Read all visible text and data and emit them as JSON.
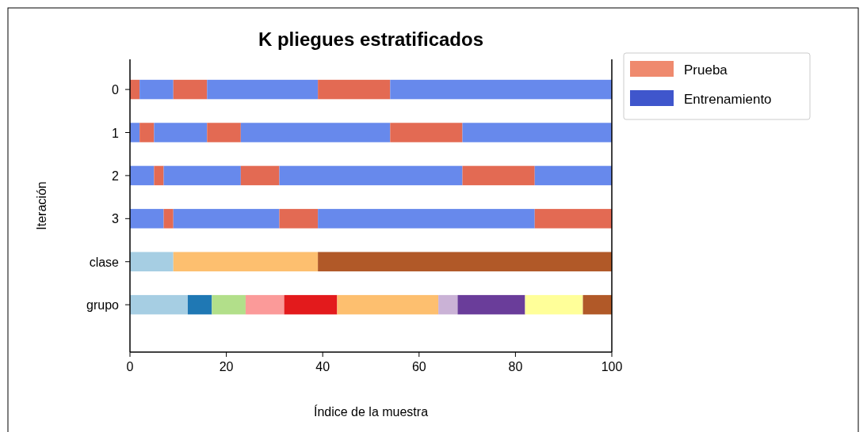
{
  "chart_data": {
    "type": "bar",
    "orientation": "horizontal",
    "stacked": true,
    "title": "K pliegues estratificados",
    "xlabel": "Índice de la muestra",
    "ylabel": "Iteración",
    "categories": [
      "0",
      "1",
      "2",
      "3",
      "clase",
      "grupo"
    ],
    "xlim": [
      0,
      100
    ],
    "xticks": [
      0,
      20,
      40,
      60,
      80,
      100
    ],
    "legend": "top right",
    "grid": false,
    "series": [
      {
        "name": "Prueba",
        "color": "#ef8a6e",
        "values": [
          null,
          null,
          null,
          null,
          null,
          null
        ]
      },
      {
        "name": "Entrenamiento",
        "color": "#3f56cc",
        "values": [
          null,
          null,
          null,
          null,
          null,
          null
        ]
      },
      {
        "values": [
          2,
          2,
          5,
          7,
          9,
          12
        ],
        "colors": [
          "#e36a53",
          "#6789ec",
          "#6789ec",
          "#6789ec",
          "#a6cee3",
          "#a6cee3"
        ]
      },
      {
        "values": [
          7,
          3,
          2,
          2,
          30,
          5
        ],
        "colors": [
          "#6789ec",
          "#e36a53",
          "#e36a53",
          "#e36a53",
          "#fdbf6f",
          "#1f78b4"
        ]
      },
      {
        "values": [
          7,
          11,
          16,
          22,
          61,
          7
        ],
        "colors": [
          "#e36a53",
          "#6789ec",
          "#6789ec",
          "#6789ec",
          "#b15928",
          "#b2df8a"
        ]
      },
      {
        "values": [
          23,
          7,
          8,
          8,
          null,
          8
        ],
        "colors": [
          "#6789ec",
          "#e36a53",
          "#e36a53",
          "#e36a53",
          null,
          "#fb9a99"
        ]
      },
      {
        "values": [
          15,
          31,
          38,
          45,
          null,
          11
        ],
        "colors": [
          "#e36a53",
          "#6789ec",
          "#6789ec",
          "#6789ec",
          null,
          "#e31a1c"
        ]
      },
      {
        "values": [
          46,
          15,
          15,
          16,
          null,
          21
        ],
        "colors": [
          "#6789ec",
          "#e36a53",
          "#e36a53",
          "#e36a53",
          null,
          "#fdbf6f"
        ]
      },
      {
        "values": [
          null,
          31,
          16,
          null,
          null,
          4
        ],
        "colors": [
          null,
          "#6789ec",
          "#6789ec",
          null,
          null,
          "#cab2d6"
        ]
      },
      {
        "values": [
          null,
          null,
          null,
          null,
          null,
          14
        ],
        "colors": [
          null,
          null,
          null,
          null,
          null,
          "#6a3d9a"
        ]
      },
      {
        "values": [
          null,
          null,
          null,
          null,
          null,
          12
        ],
        "colors": [
          null,
          null,
          null,
          null,
          null,
          "#ffff99"
        ]
      },
      {
        "values": [
          null,
          null,
          null,
          null,
          null,
          6
        ],
        "colors": [
          null,
          null,
          null,
          null,
          null,
          "#b15928"
        ]
      }
    ]
  }
}
